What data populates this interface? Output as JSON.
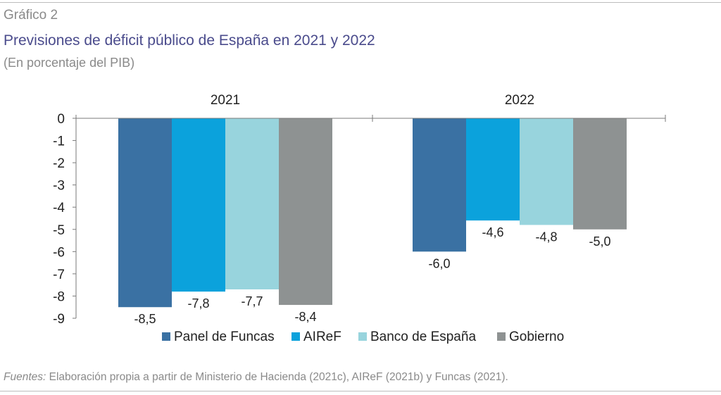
{
  "header": {
    "figure_label": "Gráfico 2",
    "title": "Previsiones de déficit público de España en 2021 y 2022",
    "subtitle": "(En porcentaje del PIB)"
  },
  "footer": {
    "source_label": "Fuentes:",
    "source_text": "Elaboración propia a partir de Ministerio de Hacienda (2021c), AIReF (2021b) y Funcas (2021)."
  },
  "chart_data": {
    "type": "bar",
    "categories": [
      "2021",
      "2022"
    ],
    "series": [
      {
        "name": "Panel de Funcas",
        "values": [
          -8.5,
          -6.0
        ],
        "labels": [
          "-8,5",
          "-6,0"
        ],
        "color": "#3a71a3"
      },
      {
        "name": "AIReF",
        "values": [
          -7.8,
          -4.6
        ],
        "labels": [
          "-7,8",
          "-4,6"
        ],
        "color": "#0ba2dc"
      },
      {
        "name": "Banco de España",
        "values": [
          -7.7,
          -4.8
        ],
        "labels": [
          "-7,7",
          "-4,8"
        ],
        "color": "#98d4dd"
      },
      {
        "name": "Gobierno",
        "values": [
          -8.4,
          -5.0
        ],
        "labels": [
          "-8,4",
          "-5,0"
        ],
        "color": "#8e9292"
      }
    ],
    "ylim": [
      -9,
      0
    ],
    "yticks": [
      "0",
      "-1",
      "-2",
      "-3",
      "-4",
      "-5",
      "-6",
      "-7",
      "-8",
      "-9"
    ],
    "legend": "bottom",
    "grid": false
  }
}
